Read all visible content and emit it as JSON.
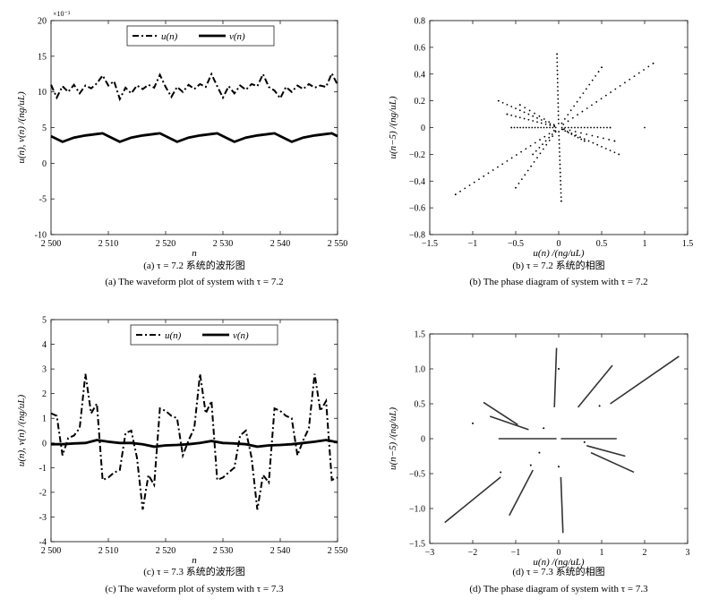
{
  "chart_data": [
    {
      "id": "a",
      "type": "line",
      "caption_cn": "(a) τ = 7.2 系统的波形图",
      "caption_en": "(a) The waveform plot of system with τ = 7.2",
      "xlabel": "n",
      "ylabel": "u(n), v(n) /(ng/uL)",
      "y_multiplier": "×10⁻³",
      "xlim": [
        2500,
        2550
      ],
      "ylim": [
        -10,
        20
      ],
      "xticks": [
        2500,
        2510,
        2520,
        2530,
        2540,
        2550
      ],
      "xtick_labels": [
        "2 500",
        "2 510",
        "2 520",
        "2 530",
        "2 540",
        "2 550"
      ],
      "yticks": [
        -10,
        -5,
        0,
        5,
        10,
        15,
        20
      ],
      "legend": {
        "placement": "top-center",
        "entries": [
          "u(n)",
          "v(n)"
        ]
      },
      "series": [
        {
          "name": "u(n)",
          "style": "dash-dot",
          "color": "#000000",
          "x": [
            2500,
            2501,
            2502,
            2503,
            2504,
            2505,
            2506,
            2507,
            2508,
            2509,
            2510,
            2511,
            2512,
            2513,
            2514,
            2515,
            2516,
            2517,
            2518,
            2519,
            2520,
            2521,
            2522,
            2523,
            2524,
            2525,
            2526,
            2527,
            2528,
            2529,
            2530,
            2531,
            2532,
            2533,
            2534,
            2535,
            2536,
            2537,
            2538,
            2539,
            2540,
            2541,
            2542,
            2543,
            2544,
            2545,
            2546,
            2547,
            2548,
            2549,
            2550
          ],
          "y": [
            11.0,
            9.2,
            10.8,
            10.0,
            11.0,
            9.8,
            10.9,
            10.5,
            11.2,
            12.3,
            10.9,
            11.5,
            9.0,
            10.6,
            9.8,
            10.9,
            10.4,
            11.0,
            10.6,
            12.4,
            10.7,
            9.3,
            10.7,
            10.0,
            11.0,
            10.4,
            11.1,
            10.7,
            12.5,
            10.8,
            9.2,
            10.8,
            9.8,
            10.9,
            10.3,
            11.1,
            10.8,
            12.5,
            10.7,
            10.2,
            9.1,
            10.7,
            10.0,
            10.9,
            10.4,
            11.1,
            10.6,
            10.9,
            10.7,
            12.6,
            11.0
          ]
        },
        {
          "name": "v(n)",
          "style": "solid-thick",
          "color": "#000000",
          "x": [
            2500,
            2502,
            2504,
            2506,
            2508,
            2509,
            2512,
            2514,
            2516,
            2518,
            2519,
            2522,
            2524,
            2526,
            2528,
            2529,
            2532,
            2534,
            2536,
            2538,
            2539,
            2542,
            2544,
            2546,
            2548,
            2549,
            2550
          ],
          "y": [
            3.8,
            3.0,
            3.6,
            3.9,
            4.1,
            4.2,
            3.0,
            3.6,
            3.9,
            4.1,
            4.2,
            3.0,
            3.6,
            3.9,
            4.1,
            4.2,
            3.0,
            3.6,
            3.9,
            4.1,
            4.2,
            3.0,
            3.6,
            3.9,
            4.1,
            4.2,
            3.8
          ]
        }
      ]
    },
    {
      "id": "b",
      "type": "scatter",
      "caption_cn": "(b) τ = 7.2 系统的相图",
      "caption_en": "(b) The phase diagram of system with τ = 7.2",
      "xlabel": "u(n) /(ng/uL)",
      "ylabel": "u(n−5) /(ng/uL)",
      "xlim": [
        -1.5,
        1.5
      ],
      "ylim": [
        -0.8,
        0.8
      ],
      "xticks": [
        -1.5,
        -1,
        -0.5,
        0,
        0.5,
        1,
        1.5
      ],
      "xtick_labels": [
        "−1.5",
        "−1",
        "−0.5",
        "0",
        "0.5",
        "1",
        "1.5"
      ],
      "yticks": [
        -0.8,
        -0.6,
        -0.4,
        -0.2,
        0,
        0.2,
        0.4,
        0.6,
        0.8
      ],
      "ytick_labels": [
        "−0.8",
        "−0.6",
        "−0.4",
        "−0.2",
        "0",
        "0.2",
        "0.4",
        "0.6",
        "0.8"
      ],
      "rays": [
        {
          "end": [
            1.1,
            0.48
          ],
          "n": 20
        },
        {
          "end": [
            -1.2,
            -0.5
          ],
          "n": 22
        },
        {
          "end": [
            0.5,
            0.45
          ],
          "n": 14
        },
        {
          "end": [
            -0.5,
            -0.45
          ],
          "n": 14
        },
        {
          "end": [
            -0.7,
            0.2
          ],
          "n": 14
        },
        {
          "end": [
            0.7,
            -0.2
          ],
          "n": 14
        },
        {
          "end": [
            -0.6,
            0.1
          ],
          "n": 12
        },
        {
          "end": [
            0.6,
            0.0
          ],
          "n": 16
        },
        {
          "end": [
            -0.55,
            0.0
          ],
          "n": 16
        },
        {
          "end": [
            -0.02,
            0.55
          ],
          "n": 18
        },
        {
          "end": [
            0.03,
            -0.55
          ],
          "n": 18
        },
        {
          "end": [
            0.3,
            -0.1
          ],
          "n": 8
        },
        {
          "end": [
            -0.3,
            -0.2
          ],
          "n": 8
        },
        {
          "end": [
            1.0,
            0.0
          ],
          "n": 0
        },
        {
          "end": [
            -0.45,
            0.17
          ],
          "n": 8
        },
        {
          "end": [
            0.65,
            -0.1
          ],
          "n": 10
        }
      ]
    },
    {
      "id": "c",
      "type": "line",
      "caption_cn": "(c) τ = 7.3 系统的波形图",
      "caption_en": "(c) The waveform plot of system with τ = 7.3",
      "xlabel": "n",
      "ylabel": "u(n), v(n) /(ng/uL)",
      "xlim": [
        2500,
        2550
      ],
      "ylim": [
        -4,
        5
      ],
      "xticks": [
        2500,
        2510,
        2520,
        2530,
        2540,
        2550
      ],
      "xtick_labels": [
        "2 500",
        "2 510",
        "2 520",
        "2 530",
        "2 540",
        "2 550"
      ],
      "yticks": [
        -4,
        -3,
        -2,
        -1,
        0,
        1,
        2,
        3,
        4,
        5
      ],
      "legend": {
        "placement": "top-center",
        "entries": [
          "u(n)",
          "v(n)"
        ]
      },
      "series": [
        {
          "name": "u(n)",
          "style": "dash-dot",
          "color": "#000000",
          "x": [
            2500,
            2501,
            2502,
            2503,
            2504,
            2505,
            2506,
            2507,
            2508,
            2509,
            2510,
            2511,
            2512,
            2513,
            2514,
            2515,
            2516,
            2517,
            2518,
            2519,
            2520,
            2521,
            2522,
            2523,
            2524,
            2525,
            2526,
            2527,
            2528,
            2529,
            2530,
            2531,
            2532,
            2533,
            2534,
            2535,
            2536,
            2537,
            2538,
            2539,
            2540,
            2541,
            2542,
            2543,
            2544,
            2545,
            2546,
            2547,
            2548,
            2549,
            2550
          ],
          "y": [
            1.2,
            1.1,
            -0.5,
            0.2,
            0.3,
            0.6,
            2.8,
            1.2,
            1.6,
            -1.5,
            -1.4,
            -1.2,
            -1.1,
            0.4,
            0.5,
            -0.6,
            -2.7,
            -1.3,
            -1.7,
            1.4,
            1.3,
            1.1,
            1.0,
            -0.5,
            0.1,
            0.6,
            2.8,
            1.2,
            1.7,
            -1.5,
            -1.4,
            -1.2,
            -1.0,
            0.3,
            0.5,
            -0.6,
            -2.7,
            -1.3,
            -1.6,
            1.4,
            1.3,
            1.1,
            1.0,
            -0.5,
            0.1,
            0.6,
            2.8,
            1.3,
            1.7,
            -1.5,
            -1.4
          ]
        },
        {
          "name": "v(n)",
          "style": "solid-thick",
          "color": "#000000",
          "x": [
            2500,
            2502,
            2504,
            2506,
            2508,
            2510,
            2512,
            2514,
            2516,
            2518,
            2520,
            2522,
            2524,
            2526,
            2528,
            2530,
            2532,
            2534,
            2536,
            2538,
            2540,
            2542,
            2544,
            2546,
            2548,
            2550
          ],
          "y": [
            -0.05,
            -0.05,
            -0.02,
            0.0,
            0.12,
            0.05,
            0.0,
            0.0,
            -0.05,
            -0.15,
            -0.1,
            -0.08,
            -0.05,
            0.0,
            0.08,
            0.0,
            -0.02,
            -0.05,
            -0.15,
            -0.1,
            -0.08,
            -0.05,
            0.0,
            0.05,
            0.12,
            0.03
          ]
        }
      ]
    },
    {
      "id": "d",
      "type": "scatter",
      "caption_cn": "(d) τ = 7.3 系统的相图",
      "caption_en": "(d) The phase diagram of system with τ = 7.3",
      "xlabel": "u(n) /(ng/uL)",
      "ylabel": "u(n−5) /(ng/uL)",
      "xlim": [
        -3,
        3
      ],
      "ylim": [
        -1.5,
        1.5
      ],
      "xticks": [
        -3,
        -2,
        -1,
        0,
        1,
        2,
        3
      ],
      "xtick_labels": [
        "−3",
        "−2",
        "−1",
        "0",
        "1",
        "2",
        "3"
      ],
      "yticks": [
        -1.5,
        -1.0,
        -0.5,
        0,
        0.5,
        1.0,
        1.5
      ],
      "ytick_labels": [
        "−1.5",
        "−1.0",
        "−0.5",
        "0",
        "0.5",
        "1.0",
        "1.5"
      ],
      "segments": [
        {
          "from": [
            1.2,
            0.5
          ],
          "to": [
            2.8,
            1.18
          ]
        },
        {
          "from": [
            0.45,
            0.45
          ],
          "to": [
            1.25,
            1.05
          ]
        },
        {
          "from": [
            -0.1,
            0.45
          ],
          "to": [
            -0.05,
            1.3
          ]
        },
        {
          "from": [
            -1.75,
            0.52
          ],
          "to": [
            -0.95,
            0.2
          ]
        },
        {
          "from": [
            -1.6,
            0.32
          ],
          "to": [
            -0.7,
            0.13
          ]
        },
        {
          "from": [
            -1.4,
            0.0
          ],
          "to": [
            -0.05,
            0.0
          ]
        },
        {
          "from": [
            0.05,
            0.0
          ],
          "to": [
            1.35,
            0.0
          ]
        },
        {
          "from": [
            0.65,
            -0.1
          ],
          "to": [
            1.55,
            -0.25
          ]
        },
        {
          "from": [
            0.75,
            -0.2
          ],
          "to": [
            1.75,
            -0.48
          ]
        },
        {
          "from": [
            -1.35,
            -0.55
          ],
          "to": [
            -2.65,
            -1.2
          ]
        },
        {
          "from": [
            -0.6,
            -0.45
          ],
          "to": [
            -1.15,
            -1.1
          ]
        },
        {
          "from": [
            0.05,
            -0.55
          ],
          "to": [
            0.1,
            -1.35
          ]
        }
      ],
      "points": [
        {
          "x": -2.0,
          "y": 0.22
        },
        {
          "x": -0.35,
          "y": 0.15
        },
        {
          "x": 0.0,
          "y": 1.0
        },
        {
          "x": 0.95,
          "y": 0.47
        },
        {
          "x": -0.45,
          "y": -0.2
        },
        {
          "x": -0.65,
          "y": -0.38
        },
        {
          "x": -1.35,
          "y": -0.48
        },
        {
          "x": 0.6,
          "y": -0.05
        },
        {
          "x": 0.0,
          "y": -0.4
        }
      ]
    }
  ]
}
